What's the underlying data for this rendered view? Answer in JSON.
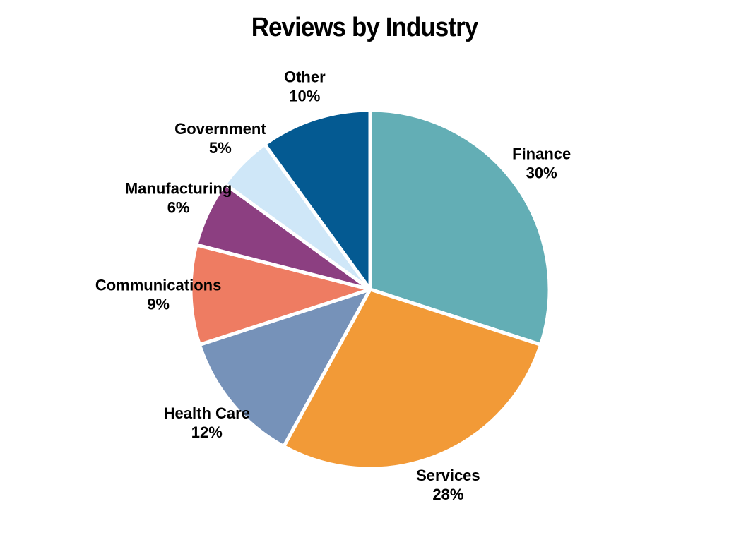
{
  "chart_data": {
    "type": "pie",
    "title": "Reviews by Industry",
    "slices": [
      {
        "label": "Finance",
        "value": 30,
        "value_label": "30%",
        "color": "#63aeb5"
      },
      {
        "label": "Services",
        "value": 28,
        "value_label": "28%",
        "color": "#f29a37"
      },
      {
        "label": "Health Care",
        "value": 12,
        "value_label": "12%",
        "color": "#7692b9"
      },
      {
        "label": "Communications",
        "value": 9,
        "value_label": "9%",
        "color": "#ee7c62"
      },
      {
        "label": "Manufacturing",
        "value": 6,
        "value_label": "6%",
        "color": "#8c3f81"
      },
      {
        "label": "Government",
        "value": 5,
        "value_label": "5%",
        "color": "#cfe7f8"
      },
      {
        "label": "Other",
        "value": 10,
        "value_label": "10%",
        "color": "#045a92"
      }
    ],
    "start_angle_deg": 0,
    "direction": "clockwise",
    "legend": "none",
    "separator_color": "#ffffff"
  }
}
